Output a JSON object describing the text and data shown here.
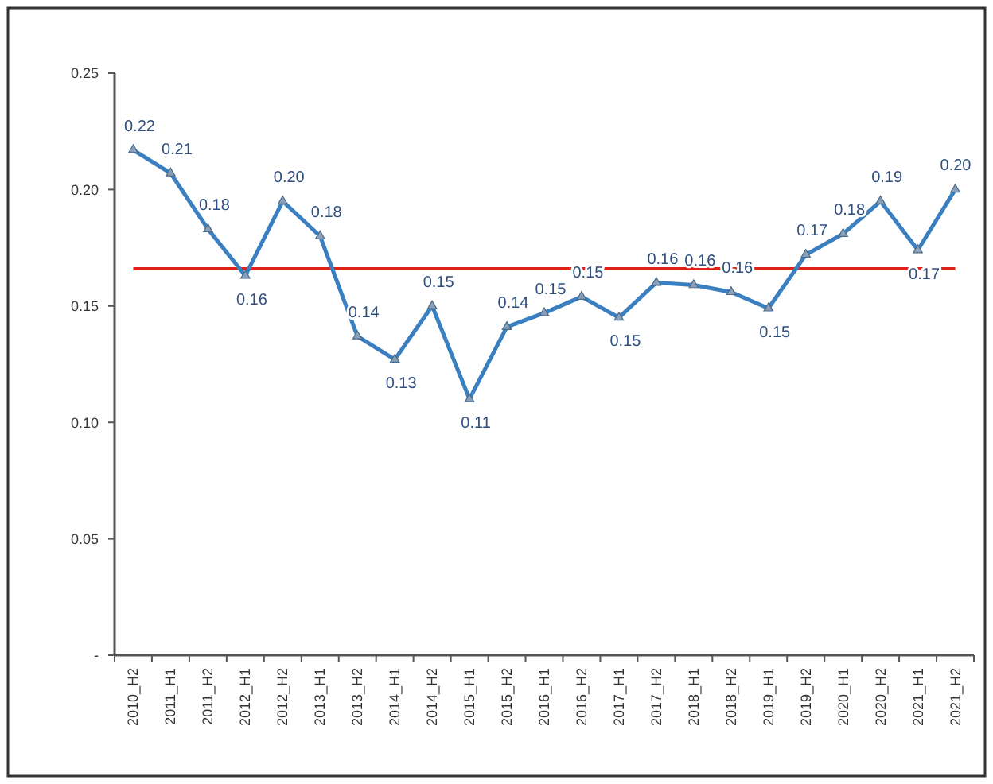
{
  "chart_data": {
    "type": "line",
    "categories": [
      "2010_H2",
      "2011_H1",
      "2011_H2",
      "2012_H1",
      "2012_H2",
      "2013_H1",
      "2013_H2",
      "2014_H1",
      "2014_H2",
      "2015_H1",
      "2015_H2",
      "2016_H1",
      "2016_H2",
      "2017_H1",
      "2017_H2",
      "2018_H1",
      "2018_H2",
      "2019_H1",
      "2019_H2",
      "2020_H1",
      "2020_H2",
      "2021_H1",
      "2021_H2"
    ],
    "series": [
      {
        "color": "#3a7fc0",
        "values": [
          0.217,
          0.207,
          0.183,
          0.163,
          0.195,
          0.18,
          0.137,
          0.127,
          0.15,
          0.11,
          0.141,
          0.147,
          0.154,
          0.145,
          0.16,
          0.159,
          0.156,
          0.149,
          0.172,
          0.181,
          0.195,
          0.174,
          0.2
        ],
        "value_labels": [
          "0.22",
          "0.21",
          "0.18",
          "0.16",
          "0.20",
          "0.18",
          "0.14",
          "0.13",
          "0.15",
          "0.11",
          "0.14",
          "0.15",
          "0.15",
          "0.15",
          "0.16",
          "0.16",
          "0.16",
          "0.15",
          "0.17",
          "0.18",
          "0.19",
          "0.17",
          "0.20"
        ]
      }
    ],
    "ylim": [
      0,
      0.25
    ],
    "yticks": [
      {
        "value": 0,
        "label": "-"
      },
      {
        "value": 0.05,
        "label": "0.05"
      },
      {
        "value": 0.1,
        "label": "0.10"
      },
      {
        "value": 0.15,
        "label": "0.15"
      },
      {
        "value": 0.2,
        "label": "0.20"
      },
      {
        "value": 0.25,
        "label": "0.25"
      }
    ],
    "ref_lines": [
      {
        "axis": "y",
        "value": 0.166,
        "color": "#e0201b"
      }
    ],
    "marker": "triangle",
    "line_style": "solid",
    "grid": false
  }
}
